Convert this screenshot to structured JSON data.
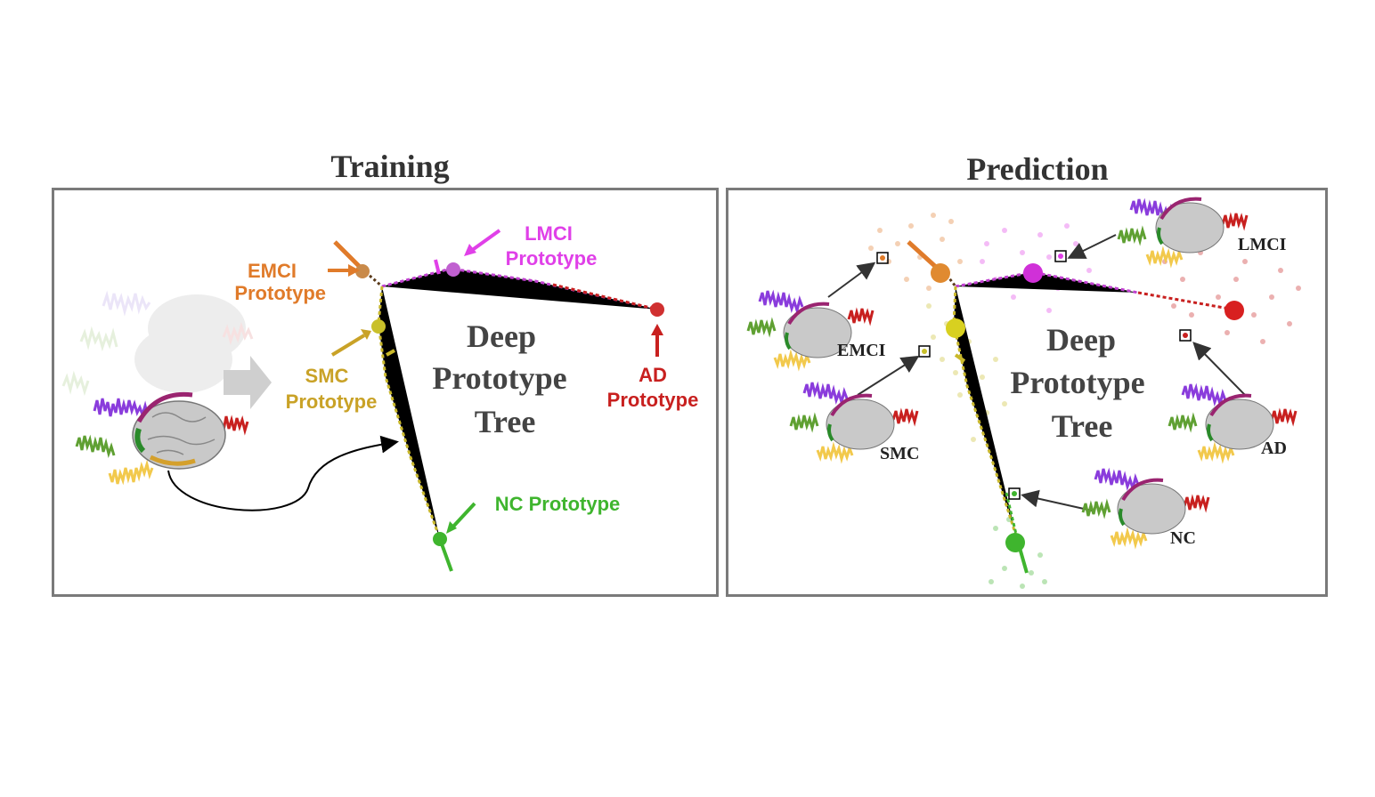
{
  "training": {
    "title": "Training",
    "tree_label": [
      "Deep",
      "Prototype",
      "Tree"
    ],
    "labels": {
      "emci": [
        "EMCI",
        "Prototype"
      ],
      "lmci": [
        "LMCI",
        "Prototype"
      ],
      "smc": [
        "SMC",
        "Prototype"
      ],
      "ad": [
        "AD",
        "Prototype"
      ],
      "nc": "NC Prototype"
    }
  },
  "prediction": {
    "title": "Prediction",
    "tree_label": [
      "Deep",
      "Prototype",
      "Tree"
    ],
    "labels": {
      "emci": "EMCI",
      "lmci": "LMCI",
      "smc": "SMC",
      "ad": "AD",
      "nc": "NC"
    }
  },
  "colors": {
    "emci": "#e07b2a",
    "lmci": "#e040e8",
    "smc": "#c9a227",
    "ad": "#c8201f",
    "nc": "#3fb52e",
    "purple_signal": "#8a3cdc",
    "green_signal": "#5fa032",
    "yellow_signal": "#f2c94c",
    "red_signal": "#c8201f",
    "frame": "#7a7a7a"
  }
}
